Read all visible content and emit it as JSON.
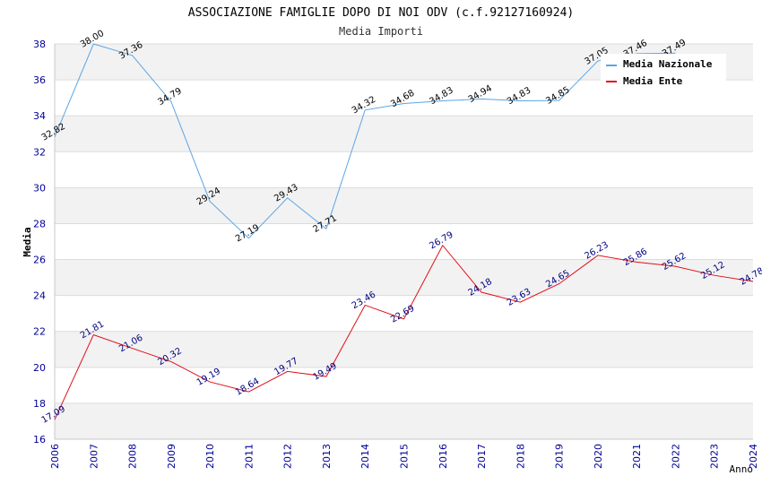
{
  "chart_data": {
    "type": "line",
    "title": "ASSOCIAZIONE FAMIGLIE DOPO DI NOI ODV (c.f.92127160924)",
    "subtitle": "Media Importi",
    "xlabel": "Anno",
    "ylabel": "Media",
    "ylim": [
      16,
      38
    ],
    "yticks": [
      16,
      18,
      20,
      22,
      24,
      26,
      28,
      30,
      32,
      34,
      36,
      38
    ],
    "grid": "horizontal bands",
    "legend_position": "top-right",
    "categories": [
      "2006",
      "2007",
      "2008",
      "2009",
      "2010",
      "2011",
      "2012",
      "2013",
      "2014",
      "2015",
      "2016",
      "2017",
      "2018",
      "2019",
      "2020",
      "2021",
      "2022",
      "2023",
      "2024"
    ],
    "series": [
      {
        "name": "Media Nazionale",
        "color": "#5aa5e6",
        "values": [
          32.82,
          38.0,
          37.36,
          34.79,
          29.24,
          27.19,
          29.43,
          27.71,
          34.32,
          34.68,
          34.83,
          34.94,
          34.83,
          34.85,
          37.05,
          37.46,
          37.49,
          null,
          null
        ],
        "labels": [
          "32.82",
          "38.00",
          "37.36",
          "34.79",
          "29.24",
          "27.19",
          "29.43",
          "27.71",
          "34.32",
          "34.68",
          "34.83",
          "34.94",
          "34.83",
          "34.85",
          "37.05",
          "37.46",
          "37.49",
          "",
          ""
        ]
      },
      {
        "name": "Media Ente",
        "color": "#e0101a",
        "values": [
          17.09,
          21.81,
          21.06,
          20.32,
          19.19,
          18.64,
          19.77,
          19.49,
          23.46,
          22.69,
          26.79,
          24.18,
          23.63,
          24.65,
          26.23,
          25.86,
          25.62,
          25.12,
          24.78
        ],
        "labels": [
          "17.09",
          "21.81",
          "21.06",
          "20.32",
          "19.19",
          "18.64",
          "19.77",
          "19.49",
          "23.46",
          "22.69",
          "26.79",
          "24.18",
          "23.63",
          "24.65",
          "26.23",
          "25.86",
          "25.62",
          "25.12",
          "24.78"
        ]
      }
    ]
  }
}
